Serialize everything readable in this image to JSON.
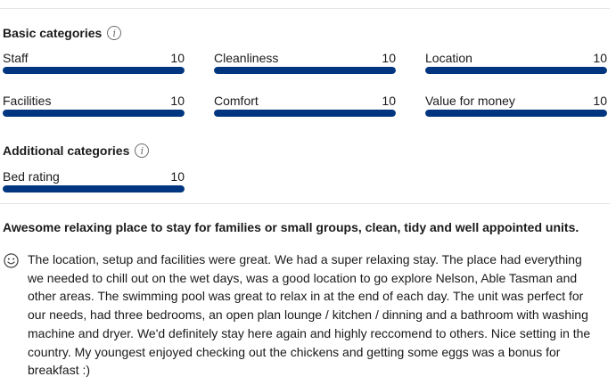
{
  "basic": {
    "heading": "Basic categories",
    "scores": [
      {
        "label": "Staff",
        "value": "10",
        "fraction": 1.0
      },
      {
        "label": "Cleanliness",
        "value": "10",
        "fraction": 1.0
      },
      {
        "label": "Location",
        "value": "10",
        "fraction": 1.0
      },
      {
        "label": "Facilities",
        "value": "10",
        "fraction": 1.0
      },
      {
        "label": "Comfort",
        "value": "10",
        "fraction": 1.0
      },
      {
        "label": "Value for money",
        "value": "10",
        "fraction": 1.0
      }
    ]
  },
  "additional": {
    "heading": "Additional categories",
    "scores": [
      {
        "label": "Bed rating",
        "value": "10",
        "fraction": 1.0
      }
    ]
  },
  "review": {
    "title": "Awesome relaxing place to stay for families or small groups, clean, tidy and well appointed units.",
    "positive_text": "The location, setup and facilities were great. We had a super relaxing stay. The place had everything we needed to chill out on the wet days, was a good location to go explore Nelson, Able Tasman and other areas. The swimming pool was great to relax in at the end of each day. The unit was perfect for our needs, had three bedrooms, an open plan lounge / kitchen / dinning and a bathroom with washing machine and dryer. We'd definitely stay here again and highly reccomend to others. Nice setting in the country. My youngest enjoyed checking out the chickens and getting some eggs was a bonus for breakfast :)"
  },
  "icons": {
    "info": "info-icon",
    "smile": "smile-icon"
  },
  "colors": {
    "bar_fill": "#003580",
    "bar_track": "#e6e6e6"
  }
}
